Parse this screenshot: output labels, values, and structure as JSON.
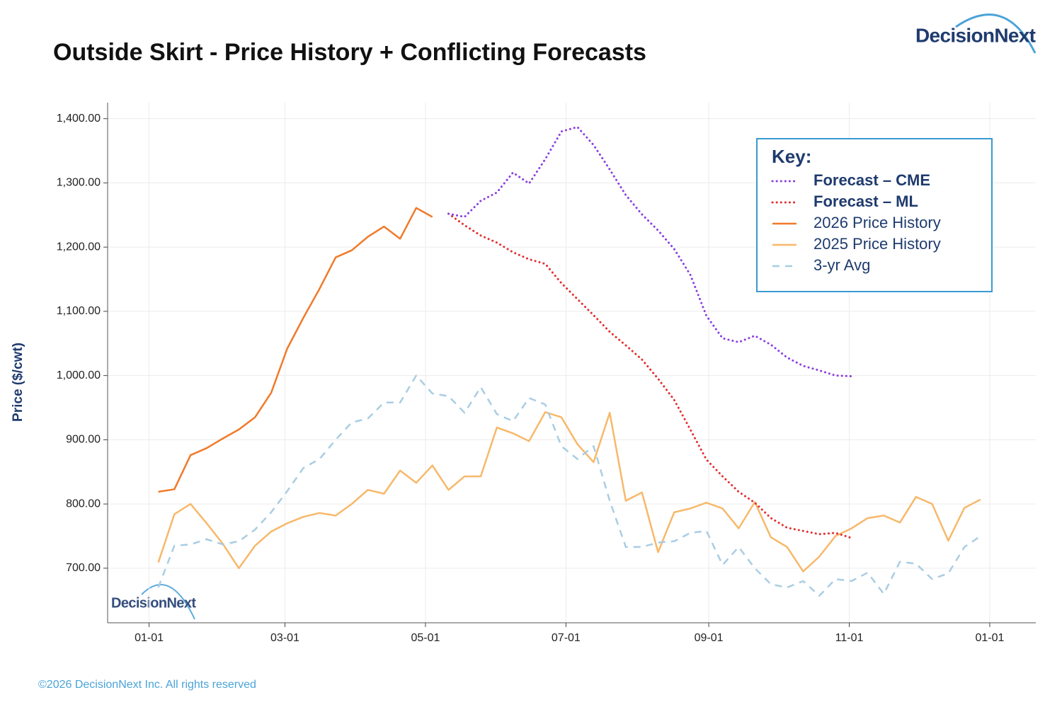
{
  "logo": "DecisionNext",
  "footer": "©2026 DecisionNext Inc. All rights reserved",
  "chart_data": {
    "type": "line",
    "title": "Outside Skirt - Price History + Conflicting Forecasts",
    "y_label": "Price ($/cwt)",
    "legend_title": "Key:",
    "legend_position": "upper right",
    "grid": true,
    "xlim": [
      -18,
      385
    ],
    "ylim": [
      615,
      1425
    ],
    "xticks": [
      {
        "value": 0,
        "label": "01-01"
      },
      {
        "value": 59,
        "label": "03-01"
      },
      {
        "value": 120,
        "label": "05-01"
      },
      {
        "value": 181,
        "label": "07-01"
      },
      {
        "value": 243,
        "label": "09-01"
      },
      {
        "value": 304,
        "label": "11-01"
      },
      {
        "value": 365,
        "label": "01-01"
      }
    ],
    "yticks": [
      {
        "value": 700,
        "label": "700.00"
      },
      {
        "value": 800,
        "label": "800.00"
      },
      {
        "value": 900,
        "label": "900.00"
      },
      {
        "value": 1000,
        "label": "1,000.00"
      },
      {
        "value": 1100,
        "label": "1,100.00"
      },
      {
        "value": 1200,
        "label": "1,200.00"
      },
      {
        "value": 1300,
        "label": "1,300.00"
      },
      {
        "value": 1400,
        "label": "1,400.00"
      }
    ],
    "series": [
      {
        "name": "Forecast – CME",
        "color": "#8a3ee0",
        "style": "dotted",
        "x": [
          130,
          137,
          144,
          151,
          158,
          165,
          172,
          179,
          186,
          193,
          200,
          207,
          214,
          221,
          228,
          235,
          242,
          249,
          256,
          263,
          270,
          277,
          284,
          291,
          298,
          305
        ],
        "values": [
          1252,
          1247,
          1272,
          1285,
          1316,
          1299,
          1337,
          1380,
          1387,
          1359,
          1321,
          1281,
          1251,
          1226,
          1197,
          1157,
          1093,
          1058,
          1052,
          1062,
          1048,
          1028,
          1015,
          1008,
          1000,
          999
        ]
      },
      {
        "name": "Forecast – ML",
        "color": "#e0302f",
        "style": "dotted",
        "x": [
          130,
          137,
          144,
          151,
          158,
          165,
          172,
          179,
          186,
          193,
          200,
          207,
          214,
          221,
          228,
          235,
          242,
          249,
          256,
          263,
          270,
          277,
          284,
          291,
          298,
          305
        ],
        "values": [
          1252,
          1234,
          1218,
          1207,
          1192,
          1181,
          1174,
          1144,
          1119,
          1094,
          1068,
          1047,
          1025,
          995,
          962,
          916,
          869,
          843,
          819,
          802,
          778,
          763,
          758,
          753,
          755,
          747
        ]
      },
      {
        "name": "2026 Price History",
        "color": "#f07a2a",
        "style": "solid",
        "x": [
          4,
          11,
          18,
          25,
          32,
          39,
          46,
          53,
          60,
          67,
          74,
          81,
          88,
          95,
          102,
          109,
          116,
          123
        ],
        "values": [
          819,
          823,
          876,
          887,
          902,
          916,
          935,
          973,
          1042,
          1090,
          1135,
          1184,
          1195,
          1216,
          1232,
          1213,
          1261,
          1247
        ]
      },
      {
        "name": "2025 Price History",
        "color": "#f7b86a",
        "style": "solid",
        "x": [
          4,
          11,
          18,
          25,
          32,
          39,
          46,
          53,
          60,
          67,
          74,
          81,
          88,
          95,
          102,
          109,
          116,
          123,
          130,
          137,
          144,
          151,
          158,
          165,
          172,
          179,
          186,
          193,
          200,
          207,
          214,
          221,
          228,
          235,
          242,
          249,
          256,
          263,
          270,
          277,
          284,
          291,
          298,
          305,
          312,
          319,
          326,
          333,
          340,
          347,
          354,
          361
        ],
        "values": [
          709,
          784,
          800,
          770,
          738,
          700,
          735,
          757,
          770,
          780,
          786,
          782,
          800,
          822,
          816,
          852,
          833,
          860,
          822,
          843,
          843,
          919,
          910,
          898,
          943,
          935,
          893,
          865,
          942,
          805,
          818,
          725,
          787,
          793,
          802,
          793,
          762,
          803,
          748,
          733,
          695,
          718,
          750,
          762,
          778,
          782,
          771,
          811,
          800,
          743,
          794,
          807
        ]
      },
      {
        "name": "3-yr Avg",
        "color": "#a9cde3",
        "style": "dashed",
        "x": [
          4,
          11,
          18,
          25,
          32,
          39,
          46,
          53,
          60,
          67,
          74,
          81,
          88,
          95,
          102,
          109,
          116,
          123,
          130,
          137,
          144,
          151,
          158,
          165,
          172,
          179,
          186,
          193,
          200,
          207,
          214,
          221,
          228,
          235,
          242,
          249,
          256,
          263,
          270,
          277,
          284,
          291,
          298,
          305,
          312,
          319,
          326,
          333,
          340,
          347,
          354,
          361
        ],
        "values": [
          670,
          735,
          737,
          745,
          737,
          742,
          760,
          787,
          820,
          856,
          870,
          900,
          927,
          933,
          958,
          958,
          1000,
          972,
          968,
          942,
          982,
          940,
          929,
          965,
          955,
          890,
          870,
          890,
          805,
          733,
          733,
          740,
          742,
          755,
          758,
          705,
          733,
          700,
          675,
          670,
          680,
          657,
          683,
          680,
          693,
          660,
          710,
          707,
          683,
          692,
          733,
          750
        ]
      }
    ]
  }
}
